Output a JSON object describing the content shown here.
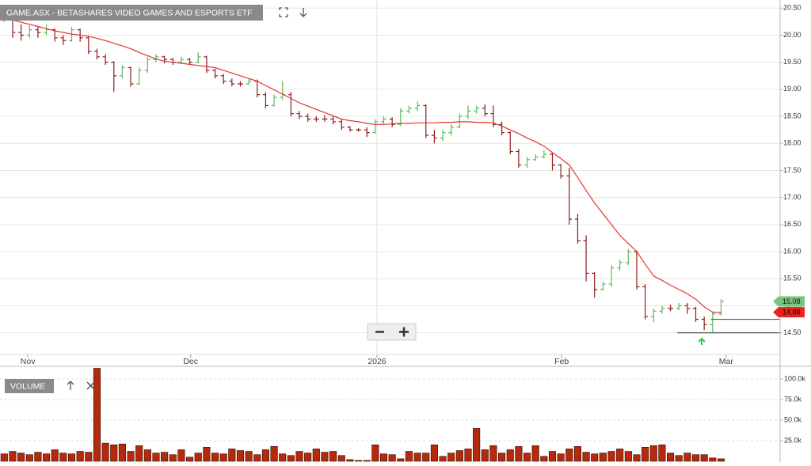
{
  "chart_data": [
    {
      "type": "ohlc",
      "title": "GAME.ASX - BETASHARES VIDEO GAMES AND ESPORTS ETF",
      "xlim": [
        -0.5,
        92
      ],
      "xticks": [
        {
          "value": 2.8,
          "label": "Nov"
        },
        {
          "value": 22.1,
          "label": "Dec"
        },
        {
          "value": 44.2,
          "label": "2026"
        },
        {
          "value": 66.1,
          "label": "Feb"
        },
        {
          "value": 85.6,
          "label": "Mar"
        }
      ],
      "ylim": [
        14.1,
        20.65
      ],
      "yticks": [
        {
          "value": 14.5,
          "label": "14.50"
        },
        {
          "value": 15,
          "label": "15.00"
        },
        {
          "value": 15.5,
          "label": "15.50"
        },
        {
          "value": 16,
          "label": "16.00"
        },
        {
          "value": 16.5,
          "label": "16.50"
        },
        {
          "value": 17,
          "label": "17.00"
        },
        {
          "value": 17.5,
          "label": "17.50"
        },
        {
          "value": 18,
          "label": "18.00"
        },
        {
          "value": 18.5,
          "label": "18.50"
        },
        {
          "value": 19,
          "label": "19.00"
        },
        {
          "value": 19.5,
          "label": "19.50"
        },
        {
          "value": 20,
          "label": "20.00"
        },
        {
          "value": 20.5,
          "label": "20.50"
        }
      ],
      "grid": true,
      "up_color": "#5cb85c",
      "down_color": "#8e1b1b",
      "open": [
        20.4,
        20.3,
        20.05,
        20.0,
        20.1,
        20.05,
        20.1,
        19.95,
        19.9,
        20.1,
        19.95,
        19.7,
        19.6,
        19.5,
        19.25,
        19.4,
        19.1,
        19.35,
        19.55,
        19.6,
        19.55,
        19.5,
        19.55,
        19.5,
        19.6,
        19.35,
        19.25,
        19.15,
        19.1,
        19.1,
        19.15,
        18.9,
        18.7,
        18.85,
        18.9,
        18.55,
        18.5,
        18.45,
        18.45,
        18.45,
        18.4,
        18.3,
        18.25,
        18.25,
        18.2,
        18.4,
        18.45,
        18.35,
        18.6,
        18.65,
        18.7,
        18.15,
        18.1,
        18.2,
        18.3,
        18.5,
        18.6,
        18.65,
        18.55,
        18.35,
        18.2,
        17.85,
        17.6,
        17.7,
        17.75,
        17.8,
        17.6,
        17.4,
        16.6,
        16.2,
        15.6,
        15.3,
        15.4,
        15.7,
        15.8,
        16.0,
        15.35,
        14.8,
        14.9,
        14.95,
        14.95,
        15.0,
        14.95,
        14.75,
        14.65,
        14.85
      ],
      "high": [
        20.45,
        20.35,
        20.2,
        20.18,
        20.15,
        20.2,
        20.12,
        20.0,
        20.15,
        20.12,
        19.98,
        19.75,
        19.65,
        19.52,
        19.45,
        19.42,
        19.4,
        19.6,
        19.65,
        19.62,
        19.58,
        19.6,
        19.58,
        19.68,
        19.62,
        19.38,
        19.28,
        19.2,
        19.15,
        19.2,
        19.18,
        18.95,
        18.9,
        19.15,
        18.95,
        18.6,
        18.55,
        18.5,
        18.52,
        18.5,
        18.45,
        18.32,
        18.28,
        18.3,
        18.45,
        18.5,
        18.48,
        18.65,
        18.7,
        18.78,
        18.72,
        18.25,
        18.25,
        18.35,
        18.55,
        18.7,
        18.7,
        18.72,
        18.7,
        18.4,
        18.22,
        17.9,
        17.75,
        17.8,
        17.88,
        17.82,
        17.62,
        17.55,
        16.7,
        16.3,
        15.62,
        15.45,
        15.75,
        15.85,
        16.05,
        16.02,
        15.4,
        14.95,
        15.0,
        15.02,
        15.05,
        15.05,
        14.98,
        14.8,
        14.9,
        15.12
      ],
      "low": [
        20.25,
        19.95,
        19.9,
        19.95,
        19.95,
        20.0,
        19.88,
        19.82,
        19.88,
        19.88,
        19.65,
        19.55,
        19.45,
        18.95,
        19.2,
        19.05,
        19.08,
        19.3,
        19.5,
        19.48,
        19.45,
        19.48,
        19.45,
        19.48,
        19.3,
        19.2,
        19.1,
        19.05,
        19.05,
        19.08,
        18.85,
        18.65,
        18.68,
        18.8,
        18.5,
        18.45,
        18.4,
        18.4,
        18.4,
        18.35,
        18.25,
        18.22,
        18.22,
        18.12,
        18.18,
        18.35,
        18.3,
        18.32,
        18.55,
        18.6,
        18.1,
        18.0,
        18.05,
        18.15,
        18.28,
        18.45,
        18.55,
        18.5,
        18.3,
        18.15,
        17.8,
        17.55,
        17.55,
        17.68,
        17.72,
        17.5,
        17.35,
        16.5,
        16.15,
        15.45,
        15.15,
        15.28,
        15.35,
        15.65,
        15.75,
        15.3,
        14.75,
        14.7,
        14.85,
        14.9,
        14.92,
        14.85,
        14.7,
        14.55,
        14.5,
        14.82
      ],
      "close": [
        20.3,
        20.05,
        20.0,
        20.1,
        20.05,
        20.1,
        19.95,
        19.9,
        20.1,
        19.95,
        19.7,
        19.6,
        19.5,
        19.25,
        19.4,
        19.1,
        19.35,
        19.55,
        19.6,
        19.55,
        19.5,
        19.55,
        19.5,
        19.6,
        19.35,
        19.25,
        19.15,
        19.1,
        19.1,
        19.15,
        18.9,
        18.7,
        18.85,
        18.9,
        18.55,
        18.5,
        18.45,
        18.45,
        18.45,
        18.4,
        18.3,
        18.25,
        18.25,
        18.2,
        18.4,
        18.45,
        18.35,
        18.6,
        18.65,
        18.7,
        18.15,
        18.1,
        18.2,
        18.3,
        18.5,
        18.6,
        18.65,
        18.55,
        18.35,
        18.2,
        17.85,
        17.6,
        17.7,
        17.75,
        17.8,
        17.6,
        17.4,
        16.6,
        16.2,
        15.6,
        15.3,
        15.4,
        15.7,
        15.8,
        16.0,
        15.35,
        14.8,
        14.9,
        14.95,
        14.95,
        15.0,
        14.95,
        14.75,
        14.65,
        14.85,
        15.08
      ],
      "moving_average": {
        "color": "#e8322e",
        "values": [
          20.32,
          20.28,
          20.24,
          20.2,
          20.16,
          20.12,
          20.08,
          20.05,
          20.02,
          20.0,
          19.98,
          19.94,
          19.9,
          19.85,
          19.8,
          19.75,
          19.68,
          19.62,
          19.56,
          19.52,
          19.5,
          19.48,
          19.46,
          19.44,
          19.42,
          19.4,
          19.35,
          19.3,
          19.25,
          19.2,
          19.15,
          19.07,
          18.99,
          18.91,
          18.83,
          18.75,
          18.69,
          18.63,
          18.57,
          18.51,
          18.45,
          18.42,
          18.4,
          18.37,
          18.35,
          18.35,
          18.36,
          18.37,
          18.37,
          18.38,
          18.38,
          18.38,
          18.39,
          18.39,
          18.4,
          18.4,
          18.39,
          18.39,
          18.38,
          18.32,
          18.25,
          18.18,
          18.1,
          18.03,
          17.95,
          17.83,
          17.72,
          17.6,
          17.37,
          17.13,
          16.9,
          16.7,
          16.5,
          16.3,
          16.15,
          16.0,
          15.77,
          15.55,
          15.47,
          15.38,
          15.3,
          15.22,
          15.12,
          14.98,
          14.88,
          14.88
        ]
      },
      "price_tags": [
        {
          "value": 15.08,
          "label": "15.08",
          "color": "#7cc47c"
        },
        {
          "value": 14.88,
          "label": "14.88",
          "color": "#e8221e"
        }
      ],
      "levels": [
        14.75,
        14.5
      ]
    },
    {
      "type": "volume",
      "title": "VOLUME",
      "color": "#b32a0c",
      "xlim": [
        -0.5,
        92
      ],
      "ylim": [
        0,
        113500
      ],
      "yticks": [
        {
          "value": 25000,
          "label": "25.0k"
        },
        {
          "value": 50000,
          "label": "50.0k"
        },
        {
          "value": 75000,
          "label": "75.0k"
        },
        {
          "value": 100000,
          "label": "100.0k"
        }
      ],
      "values": [
        9000,
        12000,
        10000,
        8000,
        11000,
        9000,
        14000,
        10000,
        9000,
        12000,
        11000,
        113000,
        22000,
        20000,
        21000,
        12000,
        19000,
        14000,
        10000,
        11000,
        8000,
        14000,
        5000,
        10000,
        17000,
        10000,
        9000,
        15000,
        13000,
        12000,
        8000,
        14000,
        18000,
        9000,
        7000,
        12000,
        10000,
        15000,
        11000,
        12000,
        7000,
        2000,
        1000,
        1000,
        20000,
        9000,
        8000,
        3000,
        12000,
        10000,
        10000,
        20000,
        6000,
        10000,
        13000,
        15000,
        40000,
        14000,
        19000,
        10000,
        14000,
        18000,
        10000,
        19000,
        6000,
        12000,
        9000,
        15000,
        18000,
        11000,
        9000,
        10000,
        12000,
        15000,
        12000,
        8000,
        17000,
        19000,
        20000,
        10000,
        7000,
        10000,
        8000,
        8000,
        4000,
        3000
      ]
    }
  ]
}
